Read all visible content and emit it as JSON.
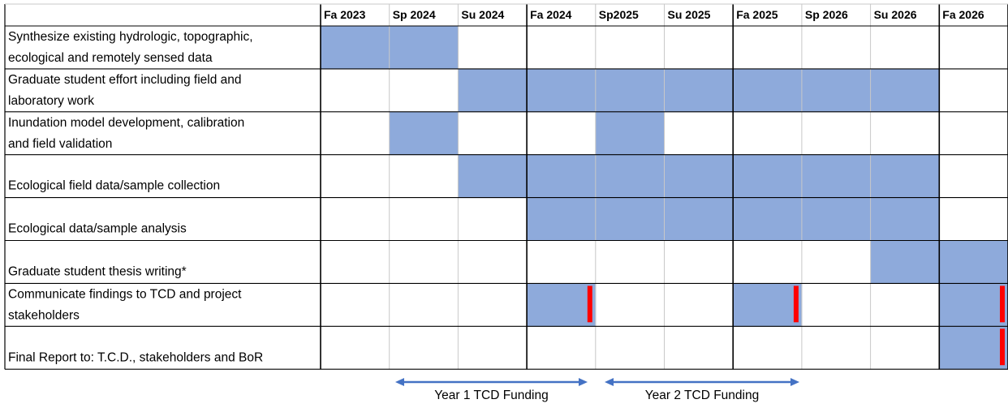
{
  "header": {
    "terms": [
      "Fa 2023",
      "Sp 2024",
      "Su 2024",
      "Fa 2024",
      "Sp2025",
      "Su 2025",
      "Fa 2025",
      "Sp 2026",
      "Su 2026",
      "Fa 2026"
    ]
  },
  "tasks": [
    {
      "lines": [
        "Synthesize existing hydrologic, topographic,",
        "ecological and remotely sensed data"
      ],
      "filled": [
        true,
        true,
        false,
        false,
        false,
        false,
        false,
        false,
        false,
        false
      ],
      "deliverable": [
        false,
        false,
        false,
        false,
        false,
        false,
        false,
        false,
        false,
        false
      ]
    },
    {
      "lines": [
        "Graduate student effort including field and",
        "laboratory work"
      ],
      "filled": [
        false,
        false,
        true,
        true,
        true,
        true,
        true,
        true,
        true,
        false
      ],
      "deliverable": [
        false,
        false,
        false,
        false,
        false,
        false,
        false,
        false,
        false,
        false
      ]
    },
    {
      "lines": [
        "Inundation model development, calibration",
        "and field validation"
      ],
      "filled": [
        false,
        true,
        false,
        false,
        true,
        false,
        false,
        false,
        false,
        false
      ],
      "deliverable": [
        false,
        false,
        false,
        false,
        false,
        false,
        false,
        false,
        false,
        false
      ]
    },
    {
      "lines": [
        "Ecological field data/sample collection"
      ],
      "filled": [
        false,
        false,
        true,
        true,
        true,
        true,
        true,
        true,
        true,
        false
      ],
      "deliverable": [
        false,
        false,
        false,
        false,
        false,
        false,
        false,
        false,
        false,
        false
      ]
    },
    {
      "lines": [
        "Ecological data/sample analysis"
      ],
      "filled": [
        false,
        false,
        false,
        true,
        true,
        true,
        true,
        true,
        true,
        false
      ],
      "deliverable": [
        false,
        false,
        false,
        false,
        false,
        false,
        false,
        false,
        false,
        false
      ]
    },
    {
      "lines": [
        "Graduate student thesis writing*"
      ],
      "filled": [
        false,
        false,
        false,
        false,
        false,
        false,
        false,
        false,
        true,
        true
      ],
      "deliverable": [
        false,
        false,
        false,
        false,
        false,
        false,
        false,
        false,
        false,
        false
      ]
    },
    {
      "lines": [
        "Communicate findings to TCD and project",
        "stakeholders"
      ],
      "filled": [
        false,
        false,
        false,
        true,
        false,
        false,
        true,
        false,
        false,
        true
      ],
      "deliverable": [
        false,
        false,
        false,
        true,
        false,
        false,
        true,
        false,
        false,
        true
      ]
    },
    {
      "lines": [
        "Final Report to: T.C.D., stakeholders and BoR"
      ],
      "filled": [
        false,
        false,
        false,
        false,
        false,
        false,
        false,
        false,
        false,
        true
      ],
      "deliverable": [
        false,
        false,
        false,
        false,
        false,
        false,
        false,
        false,
        false,
        true
      ]
    }
  ],
  "funding": [
    {
      "label": "Year 1 TCD Funding"
    },
    {
      "label": "Year 2 TCD Funding"
    }
  ]
}
